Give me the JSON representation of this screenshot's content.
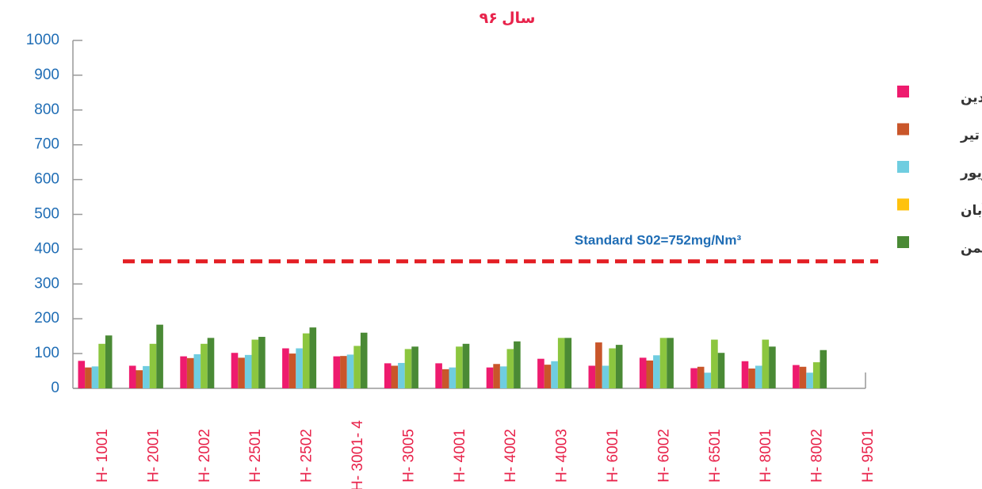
{
  "chart_data": {
    "type": "bar",
    "title": "سال ۹۶",
    "categories": [
      "H- 1001",
      "H- 2001",
      "H- 2002",
      "H- 2501",
      "H- 2502",
      "H- 3001- 4",
      "H- 3005",
      "H- 4001",
      "H- 4002",
      "H- 4003",
      "H- 6001",
      "H- 6002",
      "H- 6501",
      "H- 8001",
      "H- 8002",
      "H- 9501"
    ],
    "series": [
      {
        "name": "فروردین",
        "color": "#ee1b6e",
        "values": [
          79,
          65,
          92,
          102,
          115,
          92,
          72,
          72,
          60,
          85,
          65,
          88,
          58,
          78,
          67,
          null
        ]
      },
      {
        "name": "تیر",
        "color": "#c9562a",
        "values": [
          60,
          52,
          87,
          88,
          100,
          93,
          65,
          55,
          70,
          68,
          132,
          80,
          62,
          57,
          62,
          null
        ]
      },
      {
        "name": "شهریور",
        "color": "#6fcde0",
        "values": [
          63,
          64,
          98,
          96,
          115,
          97,
          73,
          60,
          63,
          78,
          65,
          95,
          45,
          65,
          45,
          null
        ]
      },
      {
        "name": "آبان",
        "color": "#8cc63f",
        "legend_color": "#ffc20e",
        "values": [
          128,
          128,
          128,
          140,
          158,
          122,
          113,
          120,
          113,
          145,
          115,
          145,
          140,
          140,
          75,
          null
        ]
      },
      {
        "name": "بهمن",
        "color": "#4a8a35",
        "values": [
          152,
          183,
          145,
          148,
          175,
          160,
          120,
          128,
          135,
          145,
          125,
          145,
          102,
          120,
          110,
          null
        ]
      }
    ],
    "ylim": [
      0,
      1000
    ],
    "yticks": [
      0,
      100,
      200,
      300,
      400,
      500,
      600,
      700,
      800,
      900,
      1000
    ],
    "threshold": {
      "value": 365,
      "label": "Standard S02=752mg/Nm³",
      "color": "#e31e24"
    }
  }
}
